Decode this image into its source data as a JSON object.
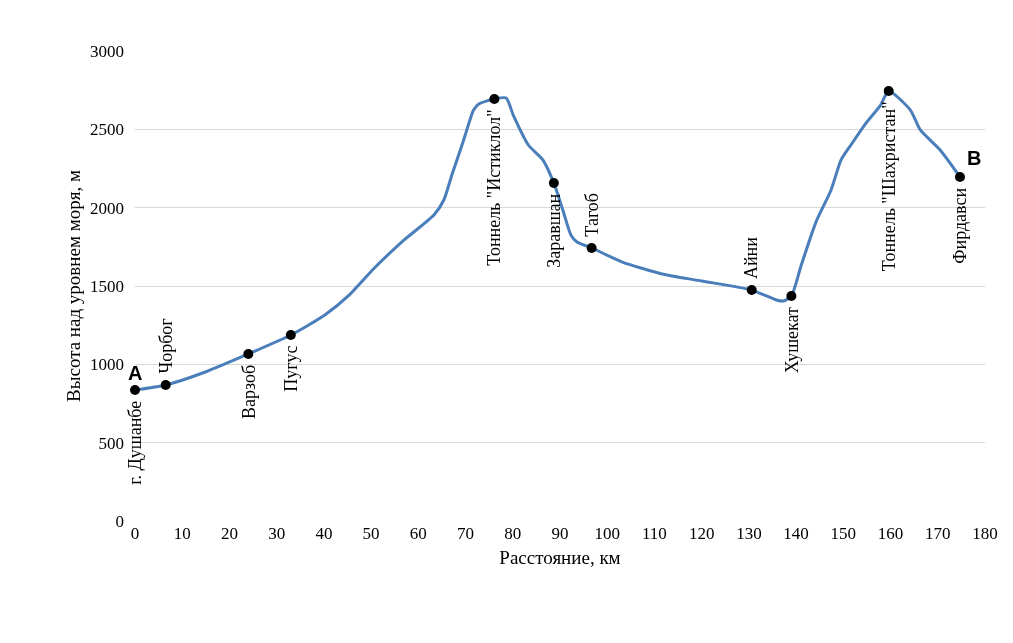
{
  "chart_data": {
    "type": "line",
    "xlabel": "Расстояние, км",
    "ylabel": "Высота над уровнем моря, м",
    "xlim": [
      0,
      180
    ],
    "xticks": [
      0,
      10,
      20,
      30,
      40,
      50,
      60,
      70,
      80,
      90,
      100,
      110,
      120,
      130,
      140,
      150,
      160,
      170,
      180
    ],
    "ylim": [
      0,
      3000
    ],
    "yticks": [
      0,
      500,
      1000,
      1500,
      2000,
      2500,
      3000
    ],
    "grid": "y",
    "series": [
      {
        "color": "#4a7ebb",
        "x": [
          0,
          6.5,
          14.9,
          24,
          33,
          40.2,
          45.4,
          50.7,
          57,
          63.3,
          65.4,
          67.1,
          69.6,
          71.7,
          72.8,
          76.1,
          78.6,
          80.1,
          83.3,
          86.4,
          88.7,
          90.6,
          92.3,
          93.6,
          96.7,
          103.2,
          111.6,
          120,
          130.6,
          135.8,
          137.3,
          139,
          141.1,
          144.2,
          147.4,
          149.5,
          151.6,
          154.8,
          157.9,
          159.6,
          164.2,
          166.3,
          170.5,
          174.7
        ],
        "values": [
          836,
          868,
          951,
          1066,
          1187,
          1315,
          1443,
          1615,
          1794,
          1953,
          2049,
          2208,
          2432,
          2623,
          2662,
          2694,
          2700,
          2591,
          2400,
          2304,
          2157,
          1985,
          1826,
          1781,
          1743,
          1653,
          1577,
          1532,
          1474,
          1411,
          1404,
          1436,
          1634,
          1908,
          2113,
          2304,
          2400,
          2540,
          2655,
          2745,
          2623,
          2496,
          2368,
          2196
        ]
      },
      {
        "type": "scatter",
        "color": "#000000",
        "x": [
          0,
          6.5,
          24,
          33,
          76.1,
          88.7,
          96.7,
          130.6,
          139,
          159.6,
          174.7
        ],
        "values": [
          836,
          868,
          1066,
          1187,
          2694,
          2157,
          1743,
          1474,
          1436,
          2745,
          2196
        ]
      }
    ],
    "annotations": [
      {
        "text": "г. Душанбе",
        "x": 0,
        "y": 780
      },
      {
        "text": "Чорбог",
        "x": 6.5,
        "y": 930
      },
      {
        "text": "Варзоб",
        "x": 24,
        "y": 1010
      },
      {
        "text": "Пугус",
        "x": 33,
        "y": 1130
      },
      {
        "text": "Тоннель \"Истиклол\"",
        "x": 76.1,
        "y": 2640
      },
      {
        "text": "Заравшан",
        "x": 88.7,
        "y": 2100
      },
      {
        "text": "Тагоб",
        "x": 96.7,
        "y": 1800
      },
      {
        "text": "Айни",
        "x": 130.6,
        "y": 1530
      },
      {
        "text": "Хушекат",
        "x": 139,
        "y": 1380
      },
      {
        "text": "Тоннель \"Шахристан\"",
        "x": 159.6,
        "y": 2690
      },
      {
        "text": "Фирдавси",
        "x": 174.7,
        "y": 2140
      },
      "A",
      "B"
    ]
  }
}
